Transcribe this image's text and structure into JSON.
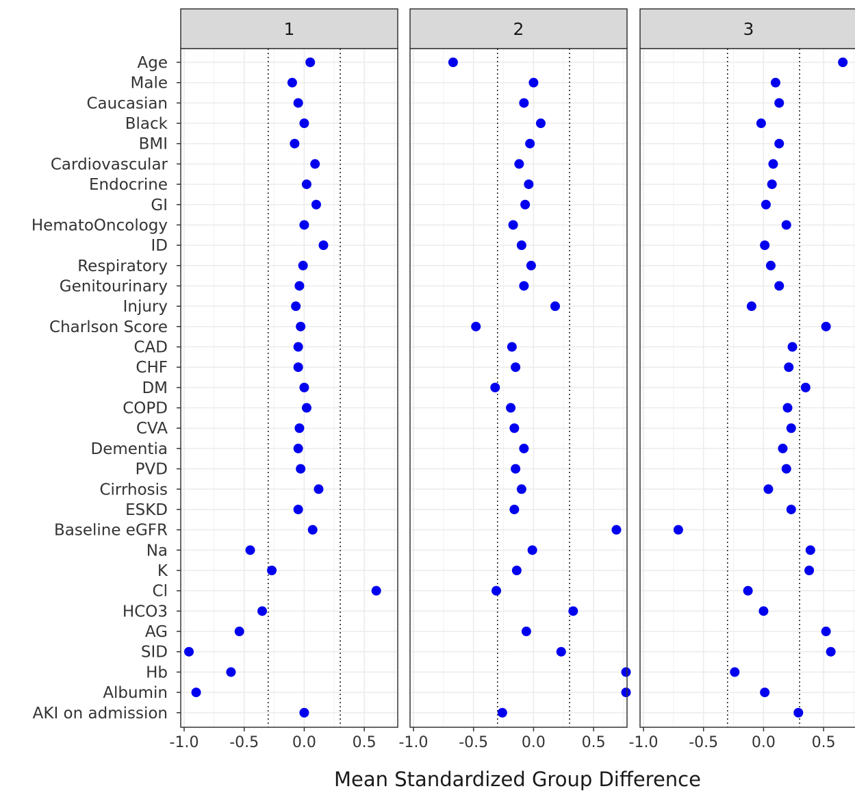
{
  "chart_data": {
    "type": "scatter",
    "xlabel": "Mean Standardized Group Difference",
    "ylabel": "",
    "xlim": [
      -1.0,
      0.75
    ],
    "x_ticks": [
      "-1.0",
      "-0.5",
      "0.0",
      "0.5"
    ],
    "x_tick_values": [
      -1.0,
      -0.5,
      0.0,
      0.5
    ],
    "reference_lines": [
      -0.3,
      0.3
    ],
    "reference_line_style": "dotted",
    "grid": true,
    "legend": "none",
    "point_color": "#0000ee",
    "categories": [
      "Age",
      "Male",
      "Caucasian",
      "Black",
      "BMI",
      "Cardiovascular",
      "Endocrine",
      "GI",
      "HematoOncology",
      "ID",
      "Respiratory",
      "Genitourinary",
      "Injury",
      "Charlson Score",
      "CAD",
      "CHF",
      "DM",
      "COPD",
      "CVA",
      "Dementia",
      "PVD",
      "Cirrhosis",
      "ESKD",
      "Baseline eGFR",
      "Na",
      "K",
      "Cl",
      "HCO3",
      "AG",
      "SID",
      "Hb",
      "Albumin",
      "AKI on admission"
    ],
    "panels": [
      {
        "title": "1",
        "values": [
          0.05,
          -0.1,
          -0.05,
          0.0,
          -0.08,
          0.09,
          0.02,
          0.1,
          0.0,
          0.16,
          -0.01,
          -0.04,
          -0.07,
          -0.03,
          -0.05,
          -0.05,
          0.0,
          0.02,
          -0.04,
          -0.05,
          -0.03,
          0.12,
          -0.05,
          0.07,
          -0.45,
          -0.27,
          0.6,
          -0.35,
          -0.54,
          -0.96,
          -0.61,
          -0.9,
          0.0
        ]
      },
      {
        "title": "2",
        "values": [
          -0.67,
          0.0,
          -0.08,
          0.06,
          -0.03,
          -0.12,
          -0.04,
          -0.07,
          -0.17,
          -0.1,
          -0.02,
          -0.08,
          0.18,
          -0.48,
          -0.18,
          -0.15,
          -0.32,
          -0.19,
          -0.16,
          -0.08,
          -0.15,
          -0.1,
          -0.16,
          0.69,
          -0.01,
          -0.14,
          -0.31,
          0.33,
          -0.06,
          0.23,
          0.77,
          0.77,
          -0.26
        ]
      },
      {
        "title": "3",
        "values": [
          0.66,
          0.1,
          0.13,
          -0.02,
          0.13,
          0.08,
          0.07,
          0.02,
          0.19,
          0.01,
          0.06,
          0.13,
          -0.1,
          0.52,
          0.24,
          0.21,
          0.35,
          0.2,
          0.23,
          0.16,
          0.19,
          0.04,
          0.23,
          -0.71,
          0.39,
          0.38,
          -0.13,
          0.0,
          0.52,
          0.56,
          -0.24,
          0.01,
          0.29
        ]
      }
    ]
  }
}
